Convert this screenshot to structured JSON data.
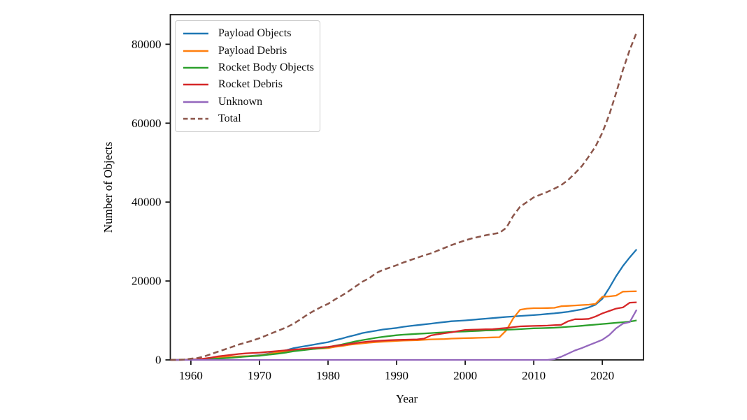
{
  "chart_data": {
    "type": "line",
    "title": "",
    "xlabel": "Year",
    "ylabel": "Number of Objects",
    "xlim": [
      1957,
      2026
    ],
    "ylim": [
      0,
      87500
    ],
    "xticks": [
      1960,
      1970,
      1980,
      1990,
      2000,
      2010,
      2020
    ],
    "yticks": [
      0,
      20000,
      40000,
      60000,
      80000
    ],
    "grid": false,
    "legend_position": "upper left",
    "years": [
      1957,
      1958,
      1959,
      1960,
      1961,
      1962,
      1963,
      1964,
      1965,
      1966,
      1967,
      1968,
      1969,
      1970,
      1971,
      1972,
      1973,
      1974,
      1975,
      1976,
      1977,
      1978,
      1979,
      1980,
      1981,
      1982,
      1983,
      1984,
      1985,
      1986,
      1987,
      1988,
      1989,
      1990,
      1991,
      1992,
      1993,
      1994,
      1995,
      1996,
      1997,
      1998,
      1999,
      2000,
      2001,
      2002,
      2003,
      2004,
      2005,
      2006,
      2007,
      2008,
      2009,
      2010,
      2011,
      2012,
      2013,
      2014,
      2015,
      2016,
      2017,
      2018,
      2019,
      2020,
      2021,
      2022,
      2023,
      2024,
      2025
    ],
    "series": [
      {
        "name": "Payload Objects",
        "color": "#1f77b4",
        "style": "solid",
        "values": [
          0,
          5,
          15,
          50,
          90,
          150,
          220,
          350,
          450,
          600,
          750,
          900,
          1050,
          1200,
          1500,
          1800,
          2100,
          2500,
          3000,
          3300,
          3600,
          3900,
          4200,
          4500,
          5000,
          5400,
          5900,
          6300,
          6800,
          7100,
          7400,
          7700,
          7900,
          8100,
          8400,
          8600,
          8800,
          9000,
          9200,
          9400,
          9600,
          9800,
          9900,
          10000,
          10150,
          10300,
          10450,
          10600,
          10750,
          10900,
          11000,
          11150,
          11250,
          11350,
          11500,
          11650,
          11800,
          12000,
          12200,
          12500,
          12800,
          13300,
          14000,
          15500,
          18200,
          21200,
          23800,
          26000,
          28000
        ]
      },
      {
        "name": "Payload Debris",
        "color": "#ff7f0e",
        "style": "solid",
        "values": [
          0,
          2,
          10,
          30,
          100,
          250,
          400,
          550,
          700,
          800,
          900,
          950,
          1000,
          1100,
          1400,
          1700,
          2000,
          2200,
          2400,
          2550,
          2700,
          2800,
          2900,
          3000,
          3300,
          3500,
          3800,
          4000,
          4200,
          4350,
          4500,
          4600,
          4700,
          4800,
          4900,
          4950,
          5000,
          5100,
          5200,
          5250,
          5300,
          5400,
          5450,
          5500,
          5550,
          5600,
          5650,
          5700,
          5750,
          7500,
          10500,
          12700,
          13000,
          13100,
          13100,
          13150,
          13200,
          13600,
          13700,
          13800,
          13900,
          14000,
          14200,
          16000,
          16100,
          16300,
          17300,
          17350,
          17400
        ]
      },
      {
        "name": "Rocket Body Objects",
        "color": "#2ca02c",
        "style": "solid",
        "values": [
          0,
          3,
          10,
          40,
          80,
          150,
          250,
          350,
          450,
          550,
          700,
          850,
          950,
          1050,
          1250,
          1450,
          1650,
          1900,
          2200,
          2400,
          2600,
          2800,
          3000,
          3200,
          3600,
          3900,
          4300,
          4700,
          5000,
          5300,
          5600,
          5850,
          6050,
          6250,
          6400,
          6500,
          6600,
          6700,
          6800,
          6900,
          7000,
          7100,
          7150,
          7200,
          7300,
          7350,
          7450,
          7500,
          7600,
          7650,
          7700,
          7800,
          7900,
          8000,
          8050,
          8100,
          8150,
          8250,
          8400,
          8500,
          8650,
          8800,
          8950,
          9100,
          9250,
          9400,
          9550,
          9700,
          10000
        ]
      },
      {
        "name": "Rocket Debris",
        "color": "#d62728",
        "style": "solid",
        "values": [
          0,
          5,
          20,
          60,
          150,
          350,
          600,
          900,
          1100,
          1300,
          1500,
          1650,
          1750,
          1850,
          2000,
          2150,
          2300,
          2450,
          2600,
          2750,
          2900,
          3050,
          3150,
          3300,
          3550,
          3750,
          4000,
          4250,
          4500,
          4650,
          4800,
          4900,
          5000,
          5060,
          5100,
          5150,
          5200,
          5400,
          6200,
          6500,
          6750,
          7000,
          7300,
          7600,
          7650,
          7700,
          7750,
          7800,
          7950,
          8100,
          8300,
          8500,
          8550,
          8600,
          8650,
          8700,
          8800,
          8900,
          9800,
          10300,
          10300,
          10400,
          11000,
          11800,
          12400,
          13000,
          13300,
          14500,
          14600
        ]
      },
      {
        "name": "Unknown",
        "color": "#9467bd",
        "style": "solid",
        "values": [
          0,
          0,
          0,
          0,
          0,
          0,
          0,
          0,
          0,
          0,
          0,
          0,
          0,
          0,
          0,
          0,
          0,
          0,
          0,
          0,
          0,
          0,
          0,
          0,
          0,
          0,
          0,
          0,
          0,
          0,
          0,
          0,
          0,
          0,
          0,
          0,
          0,
          0,
          0,
          0,
          0,
          0,
          0,
          0,
          0,
          0,
          0,
          0,
          0,
          0,
          0,
          0,
          0,
          0,
          0,
          0,
          200,
          800,
          1600,
          2400,
          3000,
          3700,
          4400,
          5100,
          6300,
          8000,
          9200,
          9600,
          12700
        ]
      },
      {
        "name": "Total",
        "color": "#8c564b",
        "style": "dashed",
        "values": [
          0,
          30,
          80,
          300,
          500,
          900,
          1500,
          2100,
          2700,
          3300,
          3900,
          4400,
          4900,
          5500,
          6200,
          6900,
          7600,
          8300,
          9200,
          10300,
          11500,
          12500,
          13400,
          14200,
          15300,
          16300,
          17400,
          18600,
          19800,
          20700,
          22000,
          22800,
          23400,
          24000,
          24700,
          25300,
          25900,
          26500,
          27000,
          27700,
          28400,
          29100,
          29700,
          30300,
          30800,
          31200,
          31600,
          31900,
          32200,
          33500,
          36500,
          38800,
          40000,
          41200,
          41900,
          42600,
          43400,
          44300,
          45600,
          47300,
          49100,
          51500,
          54100,
          57600,
          62100,
          67600,
          73500,
          78600,
          83000
        ]
      }
    ]
  }
}
